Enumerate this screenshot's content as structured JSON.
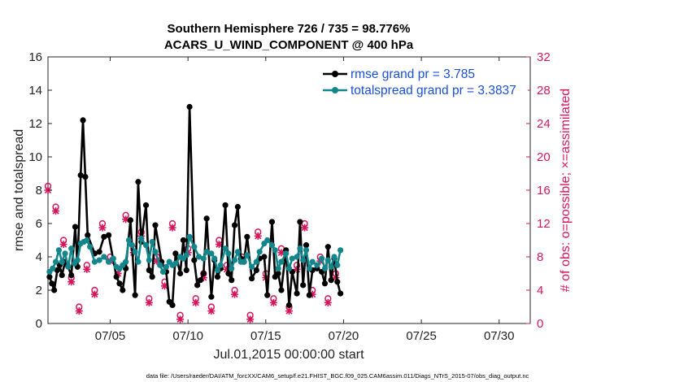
{
  "chart_data": {
    "type": "line",
    "title_line1": "Southern Hemisphere 726 / 735 = 98.776%",
    "title_line2": "ACARS_U_WIND_COMPONENT @ 400 hPa",
    "xlabel": "Jul.01,2015 00:00:00 start",
    "ylabel": "rmse and totalspread",
    "ylabel_right": "# of obs: o=possible; ×=assimilated",
    "xlim": [
      1,
      32
    ],
    "ylim": [
      0,
      16
    ],
    "ylim_right": [
      0,
      32
    ],
    "x_ticks": [
      5,
      10,
      15,
      20,
      25,
      30
    ],
    "x_tick_labels": [
      "07/05",
      "07/10",
      "07/15",
      "07/20",
      "07/25",
      "07/30"
    ],
    "y_ticks": [
      0,
      2,
      4,
      6,
      8,
      10,
      12,
      14,
      16
    ],
    "y_tick_labels": [
      "0",
      "2",
      "4",
      "6",
      "8",
      "10",
      "12",
      "14",
      "16"
    ],
    "y_ticks_right": [
      0,
      4,
      8,
      12,
      16,
      20,
      24,
      28,
      32
    ],
    "y_tick_labels_right": [
      "0",
      "4",
      "8",
      "12",
      "16",
      "20",
      "24",
      "28",
      "32"
    ],
    "series": [
      {
        "name": "rmse grand pr = 3.785",
        "color": "#000000",
        "values": [
          [
            1.1,
            2.8
          ],
          [
            1.25,
            2.4
          ],
          [
            1.4,
            2.0
          ],
          [
            1.6,
            3.2
          ],
          [
            1.75,
            3.5
          ],
          [
            1.9,
            2.9
          ],
          [
            2.1,
            3.7
          ],
          [
            2.25,
            3.5
          ],
          [
            2.5,
            2.9
          ],
          [
            2.75,
            5.8
          ],
          [
            2.9,
            3.4
          ],
          [
            3.1,
            8.9
          ],
          [
            3.25,
            12.2
          ],
          [
            3.4,
            8.8
          ],
          [
            3.55,
            5.3
          ],
          [
            4.0,
            4.2
          ],
          [
            4.3,
            4.3
          ],
          [
            4.6,
            5.2
          ],
          [
            4.9,
            5.3
          ],
          [
            5.4,
            2.8
          ],
          [
            5.6,
            2.4
          ],
          [
            5.8,
            2.0
          ],
          [
            6.0,
            3.3
          ],
          [
            6.3,
            6.2
          ],
          [
            6.6,
            1.7
          ],
          [
            6.8,
            8.5
          ],
          [
            7.0,
            4.9
          ],
          [
            7.3,
            7.1
          ],
          [
            7.5,
            3.2
          ],
          [
            7.7,
            2.8
          ],
          [
            7.9,
            5.9
          ],
          [
            8.3,
            3.7
          ],
          [
            8.6,
            3.1
          ],
          [
            8.8,
            1.3
          ],
          [
            9.0,
            1.1
          ],
          [
            9.2,
            4.2
          ],
          [
            9.5,
            3.0
          ],
          [
            9.7,
            5.0
          ],
          [
            9.9,
            3.2
          ],
          [
            10.1,
            13.0
          ],
          [
            10.4,
            3.8
          ],
          [
            10.6,
            2.3
          ],
          [
            10.8,
            2.6
          ],
          [
            11.0,
            3.0
          ],
          [
            11.2,
            6.3
          ],
          [
            11.5,
            1.6
          ],
          [
            11.7,
            3.8
          ],
          [
            11.9,
            2.8
          ],
          [
            12.1,
            3.3
          ],
          [
            12.4,
            7.1
          ],
          [
            12.6,
            3.0
          ],
          [
            12.8,
            2.6
          ],
          [
            13.0,
            5.9
          ],
          [
            13.2,
            7.0
          ],
          [
            13.4,
            3.9
          ],
          [
            13.6,
            3.7
          ],
          [
            13.8,
            5.2
          ],
          [
            14.1,
            2.7
          ],
          [
            14.4,
            3.2
          ],
          [
            14.6,
            3.9
          ],
          [
            14.9,
            4.0
          ],
          [
            15.1,
            1.7
          ],
          [
            15.4,
            6.1
          ],
          [
            15.6,
            2.8
          ],
          [
            15.8,
            3.0
          ],
          [
            16.0,
            2.0
          ],
          [
            16.3,
            4.4
          ],
          [
            16.5,
            1.1
          ],
          [
            16.7,
            3.1
          ],
          [
            17.0,
            1.8
          ],
          [
            17.2,
            6.1
          ],
          [
            17.4,
            2.3
          ],
          [
            17.6,
            4.7
          ],
          [
            17.8,
            1.7
          ],
          [
            18.0,
            3.2
          ],
          [
            18.3,
            3.3
          ],
          [
            18.6,
            3.1
          ],
          [
            18.8,
            2.4
          ],
          [
            19.0,
            4.6
          ],
          [
            19.2,
            2.6
          ],
          [
            19.4,
            3.9
          ],
          [
            19.6,
            2.5
          ],
          [
            19.8,
            1.8
          ]
        ]
      },
      {
        "name": "totalspread grand pr = 3.3837",
        "color": "#12868b",
        "values": [
          [
            1.1,
            3.1
          ],
          [
            1.3,
            3.3
          ],
          [
            1.5,
            3.7
          ],
          [
            1.7,
            4.4
          ],
          [
            1.9,
            3.7
          ],
          [
            2.1,
            4.2
          ],
          [
            2.3,
            3.4
          ],
          [
            2.5,
            4.5
          ],
          [
            2.7,
            3.6
          ],
          [
            2.9,
            3.8
          ],
          [
            3.1,
            4.8
          ],
          [
            3.3,
            4.9
          ],
          [
            3.5,
            5.0
          ],
          [
            3.7,
            4.6
          ],
          [
            4.0,
            3.7
          ],
          [
            4.3,
            3.8
          ],
          [
            4.6,
            4.0
          ],
          [
            4.9,
            3.7
          ],
          [
            5.2,
            3.9
          ],
          [
            5.4,
            3.4
          ],
          [
            5.6,
            3.3
          ],
          [
            5.8,
            3.5
          ],
          [
            6.0,
            3.7
          ],
          [
            6.2,
            5.0
          ],
          [
            6.4,
            4.7
          ],
          [
            6.6,
            4.3
          ],
          [
            6.8,
            3.7
          ],
          [
            7.0,
            5.1
          ],
          [
            7.3,
            4.7
          ],
          [
            7.5,
            3.8
          ],
          [
            7.7,
            4.9
          ],
          [
            7.9,
            4.3
          ],
          [
            8.2,
            3.5
          ],
          [
            8.4,
            3.1
          ],
          [
            8.6,
            3.4
          ],
          [
            8.8,
            3.7
          ],
          [
            9.0,
            3.5
          ],
          [
            9.2,
            3.6
          ],
          [
            9.5,
            4.0
          ],
          [
            9.7,
            3.9
          ],
          [
            9.9,
            4.1
          ],
          [
            10.1,
            5.2
          ],
          [
            10.4,
            4.6
          ],
          [
            10.7,
            4.0
          ],
          [
            11.0,
            3.9
          ],
          [
            11.2,
            4.3
          ],
          [
            11.5,
            4.2
          ],
          [
            11.7,
            3.9
          ],
          [
            11.9,
            3.2
          ],
          [
            12.1,
            3.5
          ],
          [
            12.4,
            4.5
          ],
          [
            12.6,
            4.2
          ],
          [
            12.8,
            3.3
          ],
          [
            13.0,
            3.8
          ],
          [
            13.2,
            4.3
          ],
          [
            13.4,
            3.7
          ],
          [
            13.6,
            3.7
          ],
          [
            13.8,
            4.1
          ],
          [
            14.1,
            3.4
          ],
          [
            14.4,
            3.7
          ],
          [
            14.6,
            4.3
          ],
          [
            14.9,
            4.8
          ],
          [
            15.1,
            5.0
          ],
          [
            15.4,
            4.7
          ],
          [
            15.6,
            4.4
          ],
          [
            15.8,
            3.3
          ],
          [
            16.0,
            3.7
          ],
          [
            16.3,
            4.2
          ],
          [
            16.5,
            3.3
          ],
          [
            16.7,
            3.9
          ],
          [
            17.0,
            4.0
          ],
          [
            17.2,
            4.5
          ],
          [
            17.4,
            3.8
          ],
          [
            17.6,
            4.4
          ],
          [
            17.8,
            3.3
          ],
          [
            18.0,
            3.7
          ],
          [
            18.3,
            3.5
          ],
          [
            18.6,
            3.9
          ],
          [
            18.8,
            3.3
          ],
          [
            19.0,
            3.8
          ],
          [
            19.2,
            3.4
          ],
          [
            19.4,
            4.0
          ],
          [
            19.6,
            3.5
          ],
          [
            19.8,
            4.4
          ]
        ]
      }
    ],
    "obs_possible": [
      [
        1.0,
        16.5
      ],
      [
        1.5,
        14
      ],
      [
        2.0,
        10
      ],
      [
        2.5,
        5.5
      ],
      [
        3.0,
        2
      ],
      [
        3.5,
        7
      ],
      [
        4.0,
        4
      ],
      [
        4.5,
        12
      ],
      [
        5.0,
        8
      ],
      [
        5.5,
        6.5
      ],
      [
        6.0,
        13
      ],
      [
        6.5,
        9
      ],
      [
        7.0,
        11
      ],
      [
        7.5,
        3
      ],
      [
        8.0,
        8
      ],
      [
        8.5,
        5
      ],
      [
        9.0,
        12
      ],
      [
        9.5,
        1
      ],
      [
        10.0,
        9
      ],
      [
        10.5,
        3
      ],
      [
        11.0,
        6
      ],
      [
        11.5,
        2
      ],
      [
        12.0,
        10
      ],
      [
        12.5,
        7
      ],
      [
        13.0,
        4
      ],
      [
        13.5,
        8
      ],
      [
        14.0,
        1
      ],
      [
        14.5,
        11
      ],
      [
        15.0,
        6
      ],
      [
        15.5,
        3
      ],
      [
        16.0,
        9
      ],
      [
        16.5,
        2
      ],
      [
        17.0,
        7
      ],
      [
        17.5,
        12
      ],
      [
        18.0,
        4
      ],
      [
        18.5,
        8
      ],
      [
        19.0,
        3
      ],
      [
        19.5,
        6
      ]
    ],
    "obs_assimilated": [
      [
        1.0,
        16.0
      ],
      [
        1.5,
        13.5
      ],
      [
        2.0,
        9.5
      ],
      [
        2.5,
        5.0
      ],
      [
        3.0,
        1.5
      ],
      [
        3.5,
        6.5
      ],
      [
        4.0,
        3.5
      ],
      [
        4.5,
        11.5
      ],
      [
        5.0,
        7.5
      ],
      [
        5.5,
        6.0
      ],
      [
        6.0,
        12.5
      ],
      [
        6.5,
        8.5
      ],
      [
        7.0,
        10.5
      ],
      [
        7.5,
        2.5
      ],
      [
        8.0,
        7.5
      ],
      [
        8.5,
        4.5
      ],
      [
        9.0,
        11.5
      ],
      [
        9.5,
        0.5
      ],
      [
        10.0,
        8.5
      ],
      [
        10.5,
        2.5
      ],
      [
        11.0,
        5.5
      ],
      [
        11.5,
        1.5
      ],
      [
        12.0,
        9.5
      ],
      [
        12.5,
        6.5
      ],
      [
        13.0,
        3.5
      ],
      [
        13.5,
        7.5
      ],
      [
        14.0,
        0.5
      ],
      [
        14.5,
        10.5
      ],
      [
        15.0,
        5.5
      ],
      [
        15.5,
        2.5
      ],
      [
        16.0,
        8.5
      ],
      [
        16.5,
        1.5
      ],
      [
        17.0,
        6.5
      ],
      [
        17.5,
        11.5
      ],
      [
        18.0,
        3.5
      ],
      [
        18.5,
        7.5
      ],
      [
        19.0,
        2.5
      ],
      [
        19.5,
        5.5
      ]
    ],
    "legend_position": "top-right",
    "footnote": "data file: /Users/raeder/DAI/ATM_forcXX/CAM6_setup/f.e21.FHIST_BGC.f09_025.CAM6assim.011/Diags_NTrS_2015-07/obs_diag_output.nc"
  }
}
